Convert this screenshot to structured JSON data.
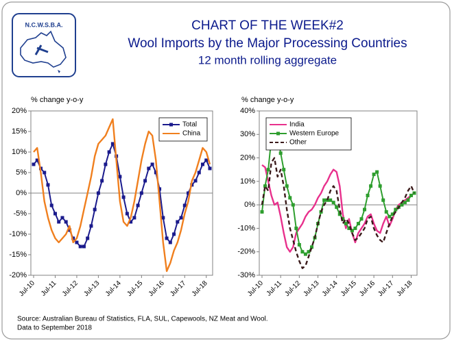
{
  "logo": {
    "text": "N.C.W.S.B.A."
  },
  "header": {
    "title": "CHART OF THE WEEK#2",
    "subtitle": "Wool Imports by the Major Processing Countries",
    "note": "12 month rolling aggregate"
  },
  "chart_data": [
    {
      "type": "line",
      "y_label": "% change y-o-y",
      "categories": [
        "Jul-10",
        null,
        null,
        null,
        null,
        null,
        "Jul-11",
        null,
        null,
        null,
        null,
        null,
        "Jul-12",
        null,
        null,
        null,
        null,
        null,
        "Jul-13",
        null,
        null,
        null,
        null,
        null,
        "Jul-14",
        null,
        null,
        null,
        null,
        null,
        "Jul-15",
        null,
        null,
        null,
        null,
        null,
        "Jul-16",
        null,
        null,
        null,
        null,
        null,
        "Jul-17",
        null,
        null,
        null,
        null,
        null,
        "Jul-18",
        null
      ],
      "series": [
        {
          "name": "Total",
          "color": "#1a1a8c",
          "marker": "square",
          "values": [
            7,
            8,
            6,
            5,
            2,
            -3,
            -5,
            -7,
            -6,
            -7,
            -9,
            -11,
            -12,
            -13,
            -13,
            -11,
            -8,
            -4,
            0,
            3,
            7,
            10,
            12,
            9,
            4,
            -1,
            -5,
            -7,
            -6,
            -3,
            0,
            3,
            6,
            7,
            5,
            1,
            -6,
            -11,
            -12,
            -10,
            -7,
            -6,
            -3,
            0,
            2,
            3,
            5,
            7,
            8,
            6
          ]
        },
        {
          "name": "China",
          "color": "#f07f1e",
          "values": [
            10,
            11,
            5,
            -2,
            -6,
            -9,
            -11,
            -12,
            -11,
            -10,
            -8,
            -12,
            -11,
            -8,
            -4,
            0,
            4,
            9,
            12,
            13,
            14,
            16,
            18,
            8,
            -2,
            -7,
            -8,
            -6,
            -2,
            3,
            8,
            12,
            15,
            14,
            8,
            -2,
            -12,
            -19,
            -17,
            -14,
            -12,
            -9,
            -5,
            -2,
            3,
            5,
            8,
            11,
            10,
            7
          ]
        }
      ],
      "ylim": [
        -20,
        20
      ],
      "yticks": [
        {
          "value": -20,
          "label": "-20%"
        },
        {
          "value": -15,
          "label": "-15%"
        },
        {
          "value": -10,
          "label": "-10%"
        },
        {
          "value": -5,
          "label": "-5%"
        },
        {
          "value": 0,
          "label": "0%"
        },
        {
          "value": 5,
          "label": "5%"
        },
        {
          "value": 10,
          "label": "10%"
        },
        {
          "value": 15,
          "label": "15%"
        },
        {
          "value": 20,
          "label": "20%"
        }
      ],
      "zero_line": true,
      "legend": "top-right"
    },
    {
      "type": "line",
      "y_label": "% change y-o-y",
      "categories": [
        "Jul-10",
        null,
        null,
        null,
        null,
        null,
        "Jul-11",
        null,
        null,
        null,
        null,
        null,
        "Jul-12",
        null,
        null,
        null,
        null,
        null,
        "Jul-13",
        null,
        null,
        null,
        null,
        null,
        "Jul-14",
        null,
        null,
        null,
        null,
        null,
        "Jul-15",
        null,
        null,
        null,
        null,
        null,
        "Jul-16",
        null,
        null,
        null,
        null,
        null,
        "Jul-17",
        null,
        null,
        null,
        null,
        null,
        "Jul-18",
        null
      ],
      "series": [
        {
          "name": "India",
          "color": "#e8308c",
          "values": [
            17,
            16,
            10,
            4,
            0,
            1,
            -5,
            -12,
            -18,
            -20,
            -18,
            -12,
            -10,
            -8,
            -5,
            -3,
            -2,
            0,
            3,
            5,
            8,
            10,
            13,
            15,
            14,
            8,
            -4,
            -10,
            -6,
            -12,
            -16,
            -12,
            -10,
            -8,
            -5,
            -4,
            -8,
            -11,
            -12,
            -8,
            -5,
            -9,
            -6,
            -2,
            0,
            1,
            2,
            3,
            4,
            5
          ]
        },
        {
          "name": "Western Europe",
          "color": "#2e9e2e",
          "marker": "square",
          "values": [
            -3,
            8,
            15,
            28,
            32,
            30,
            22,
            15,
            8,
            3,
            0,
            -10,
            -17,
            -20,
            -21,
            -20,
            -18,
            -14,
            -8,
            -3,
            2,
            2,
            2,
            1,
            -1,
            -4,
            -6,
            -8,
            -10,
            -11,
            -10,
            -8,
            -6,
            -2,
            4,
            8,
            13,
            14,
            8,
            2,
            -3,
            -5,
            -4,
            -2,
            -1,
            0,
            1,
            2,
            4,
            5
          ]
        },
        {
          "name": "Other",
          "color": "#3a1a1a",
          "dash": true,
          "values": [
            0,
            8,
            6,
            18,
            20,
            12,
            15,
            8,
            -2,
            -10,
            -15,
            -20,
            -24,
            -27,
            -26,
            -22,
            -18,
            -14,
            -8,
            -3,
            0,
            2,
            6,
            8,
            6,
            -2,
            -8,
            -6,
            -8,
            -12,
            -15,
            -14,
            -12,
            -10,
            -6,
            -5,
            -10,
            -13,
            -15,
            -16,
            -12,
            -8,
            -5,
            -3,
            -1,
            1,
            3,
            6,
            8,
            5
          ]
        }
      ],
      "ylim": [
        -30,
        40
      ],
      "yticks": [
        {
          "value": -30,
          "label": "-30%"
        },
        {
          "value": -20,
          "label": "-20%"
        },
        {
          "value": -10,
          "label": "-10%"
        },
        {
          "value": 0,
          "label": "0%"
        },
        {
          "value": 10,
          "label": "10%"
        },
        {
          "value": 20,
          "label": "20%"
        },
        {
          "value": 30,
          "label": "30%"
        },
        {
          "value": 40,
          "label": "40%"
        }
      ],
      "zero_line": true,
      "legend": "top-left"
    }
  ],
  "footer": {
    "source": "Source:  Australian Bureau of Statistics, FLA, SUL, Capewools, NZ Meat and Wool.",
    "data_note": "Data to September 2018"
  }
}
